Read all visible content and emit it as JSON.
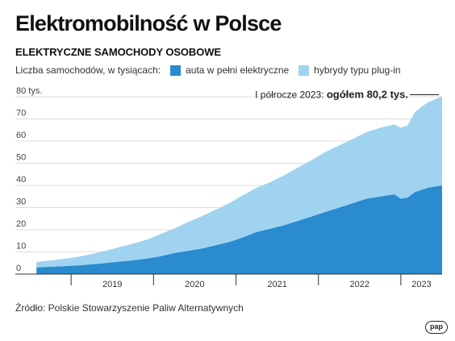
{
  "title": "Elektromobilność w Polsce",
  "subtitle": "ELEKTRYCZNE SAMOCHODY OSOBOWE",
  "legend": {
    "prefix": "Liczba samochodów, w tysiącach:",
    "items": [
      {
        "label": "auta w pełni elektryczne",
        "color": "#2a8bcf"
      },
      {
        "label": "hybrydy typu plug-in",
        "color": "#9fd3f0"
      }
    ]
  },
  "source": "Źródło: Polskie Stowarzyszenie Paliw Alternatywnych",
  "logo": "pap",
  "chart_data": {
    "type": "area",
    "stacked": true,
    "ylim": [
      0,
      80
    ],
    "yticks": [
      0,
      10,
      20,
      30,
      40,
      50,
      60,
      70,
      80
    ],
    "ytick_labels": [
      "0",
      "10",
      "20",
      "30",
      "40",
      "50",
      "60",
      "70",
      "80 tys."
    ],
    "grid": true,
    "x_range": [
      2018.5,
      2023.5
    ],
    "x_year_labels": [
      "2019",
      "2020",
      "2021",
      "2022",
      "2023"
    ],
    "annotation": {
      "label": "I półrocze 2023:",
      "value_label": "ogółem 80,2 tys.",
      "x": 2023.5,
      "y": 80.2
    },
    "x": [
      2018.58,
      2018.75,
      2018.92,
      2019.08,
      2019.25,
      2019.42,
      2019.58,
      2019.75,
      2019.92,
      2020.08,
      2020.25,
      2020.42,
      2020.58,
      2020.75,
      2020.92,
      2021.08,
      2021.25,
      2021.42,
      2021.58,
      2021.75,
      2021.92,
      2022.08,
      2022.25,
      2022.42,
      2022.58,
      2022.75,
      2022.92,
      2023.0,
      2023.08,
      2023.17,
      2023.25,
      2023.33,
      2023.5
    ],
    "series": [
      {
        "name": "auta w pełni elektryczne",
        "color": "#2a8bcf",
        "values": [
          3.0,
          3.3,
          3.6,
          3.9,
          4.4,
          5.0,
          5.6,
          6.2,
          7.0,
          8.0,
          9.5,
          10.5,
          11.5,
          13.0,
          14.5,
          16.5,
          19.0,
          20.5,
          22.0,
          24.0,
          26.0,
          28.0,
          30.0,
          32.0,
          34.0,
          35.0,
          36.0,
          34.0,
          34.5,
          37.0,
          38.0,
          39.0,
          40.0
        ]
      },
      {
        "name": "hybrydy typu plug-in",
        "color": "#9fd3f0",
        "values": [
          2.5,
          2.8,
          3.3,
          3.9,
          4.6,
          5.5,
          6.5,
          7.5,
          8.5,
          10.0,
          11.0,
          13.0,
          14.5,
          16.0,
          17.5,
          19.0,
          20.0,
          21.0,
          22.5,
          24.0,
          25.5,
          27.0,
          28.0,
          29.0,
          30.0,
          31.0,
          31.5,
          32.0,
          32.5,
          36.0,
          37.5,
          38.5,
          40.2
        ]
      }
    ]
  }
}
